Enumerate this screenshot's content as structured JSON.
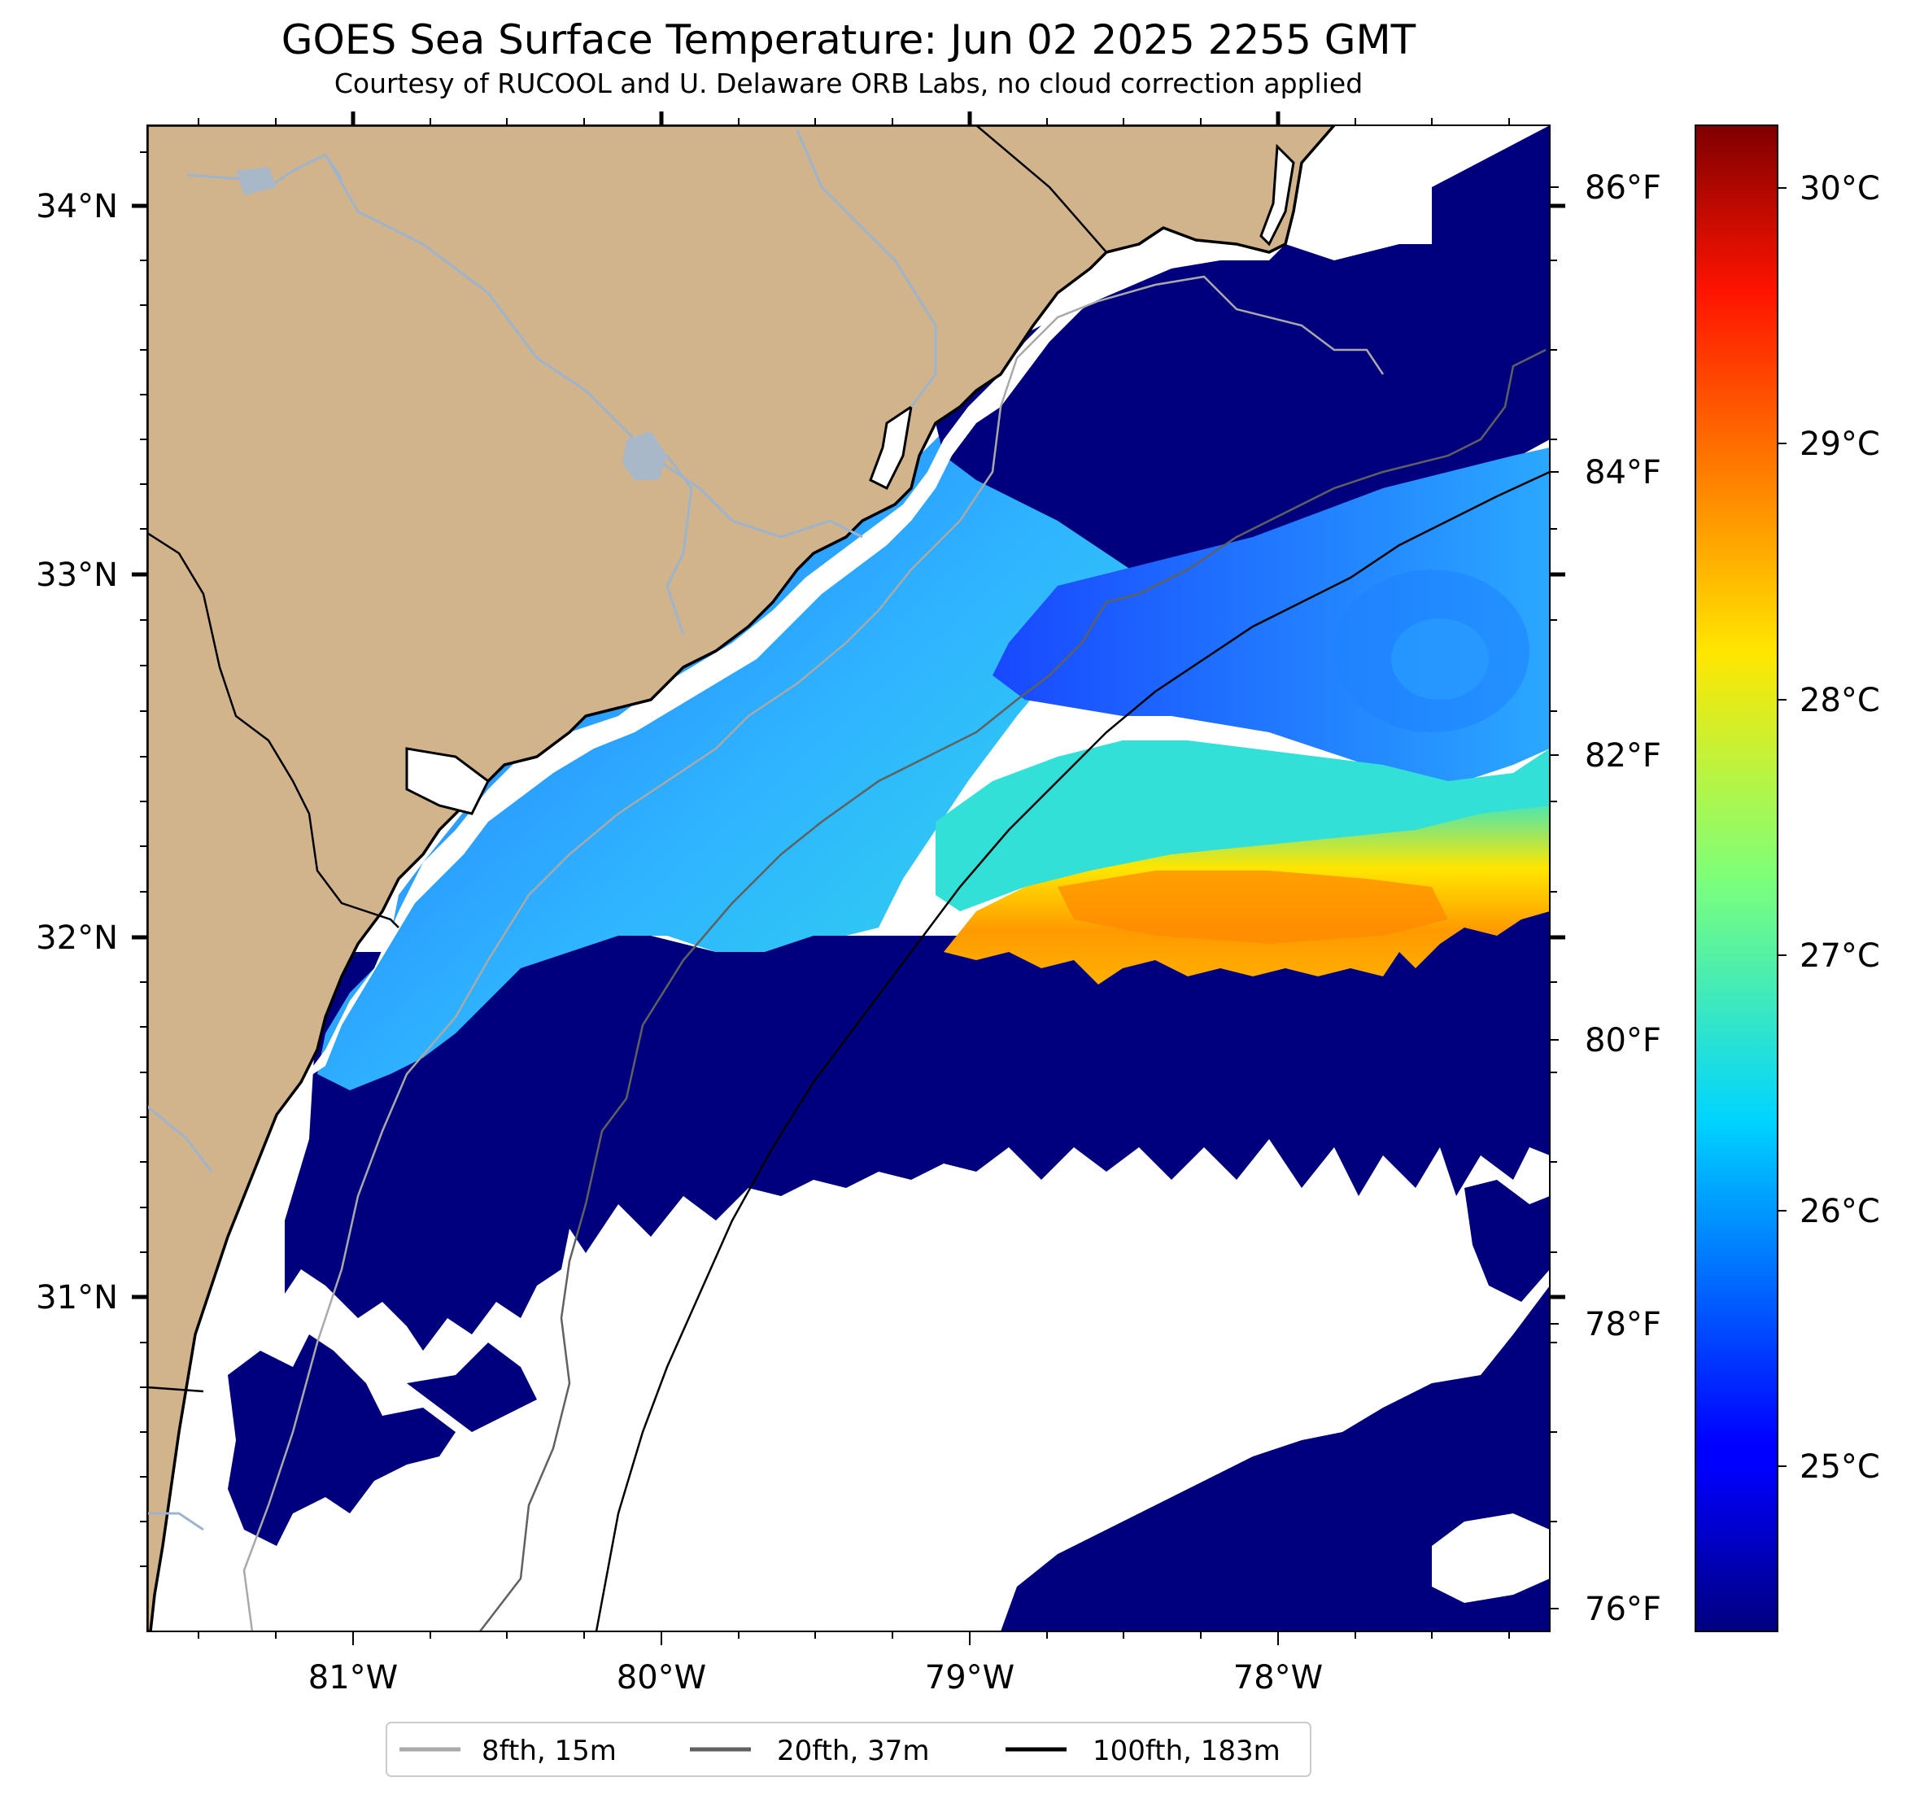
{
  "title": "GOES Sea Surface Temperature: Jun 02 2025 2255 GMT",
  "subtitle": "Courtesy of RUCOOL and U. Delaware ORB Labs, no cloud correction applied",
  "map": {
    "lon_range": [
      -81.67,
      -77.12
    ],
    "lat_range": [
      30.1,
      34.23
    ],
    "lon_ticks": [
      "81°W",
      "80°W",
      "79°W",
      "78°W"
    ],
    "lat_ticks": [
      "34°N",
      "33°N",
      "32°N",
      "31°N"
    ],
    "fahrenheit_ticks": [
      "86°F",
      "84°F",
      "82°F",
      "80°F",
      "78°F",
      "76°F"
    ],
    "colors": {
      "land": "#d2b48c",
      "cold_water": "#00007f",
      "no_data": "#ffffff",
      "rivers": "#9db4cc",
      "isobath_8fth": "#a9a9a9",
      "isobath_20fth": "#606060",
      "isobath_100fth": "#000000"
    }
  },
  "colorbar": {
    "ticks": [
      "30°C",
      "29°C",
      "28°C",
      "27°C",
      "26°C",
      "25°C"
    ],
    "colormap": "jet"
  },
  "legend": {
    "items": [
      {
        "label": "8fth, 15m",
        "color": "#a9a9a9"
      },
      {
        "label": "20fth, 37m",
        "color": "#606060"
      },
      {
        "label": "100fth, 183m",
        "color": "#000000"
      }
    ]
  }
}
